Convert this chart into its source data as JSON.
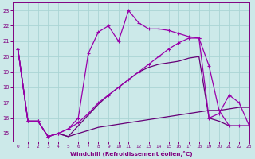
{
  "xlabel": "Windchill (Refroidissement éolien,°C)",
  "xlim": [
    -0.5,
    23
  ],
  "ylim": [
    14.5,
    23.5
  ],
  "xticks": [
    0,
    1,
    2,
    3,
    4,
    5,
    6,
    7,
    8,
    9,
    10,
    11,
    12,
    13,
    14,
    15,
    16,
    17,
    18,
    19,
    20,
    21,
    22,
    23
  ],
  "yticks": [
    15,
    16,
    17,
    18,
    19,
    20,
    21,
    22,
    23
  ],
  "bg_color": "#cce9e9",
  "line_color1": "#9900aa",
  "line_color2": "#660077",
  "grid_color": "#aad4d4",
  "line1_x": [
    0,
    1,
    2,
    3,
    4,
    5,
    6,
    7,
    8,
    9,
    10,
    11,
    12,
    13,
    14,
    15,
    16,
    17,
    18,
    19,
    20,
    21,
    22,
    23
  ],
  "line1_y": [
    20.5,
    15.8,
    15.8,
    14.8,
    15.0,
    14.8,
    15.5,
    16.2,
    16.9,
    17.5,
    18.0,
    18.5,
    19.0,
    19.3,
    19.5,
    19.6,
    19.7,
    19.9,
    20.0,
    16.0,
    15.8,
    15.5,
    15.5,
    15.5
  ],
  "line2_x": [
    0,
    1,
    2,
    3,
    4,
    5,
    6,
    7,
    8,
    9,
    10,
    11,
    12,
    13,
    14,
    15,
    16,
    17,
    18,
    19,
    20,
    21,
    22,
    23
  ],
  "line2_y": [
    20.5,
    15.8,
    15.8,
    14.8,
    15.0,
    15.3,
    16.0,
    20.2,
    21.6,
    22.0,
    21.0,
    23.0,
    22.2,
    21.8,
    21.8,
    21.7,
    21.5,
    21.3,
    21.2,
    19.4,
    16.5,
    15.5,
    15.5,
    15.5
  ],
  "line3_x": [
    0,
    1,
    2,
    3,
    4,
    5,
    6,
    7,
    8,
    9,
    10,
    11,
    12,
    13,
    14,
    15,
    16,
    17,
    18,
    19,
    20,
    21,
    22,
    23
  ],
  "line3_y": [
    20.5,
    15.8,
    15.8,
    14.8,
    15.0,
    15.3,
    15.7,
    16.3,
    17.0,
    17.5,
    18.0,
    18.5,
    19.0,
    19.5,
    20.0,
    20.5,
    20.9,
    21.2,
    21.2,
    16.0,
    16.3,
    17.5,
    17.0,
    15.5
  ],
  "line4_x": [
    0,
    1,
    2,
    3,
    4,
    5,
    6,
    7,
    8,
    9,
    10,
    11,
    12,
    13,
    14,
    15,
    16,
    17,
    18,
    19,
    20,
    21,
    22,
    23
  ],
  "line4_y": [
    20.5,
    15.8,
    15.8,
    14.8,
    15.0,
    14.8,
    15.0,
    15.2,
    15.4,
    15.5,
    15.6,
    15.7,
    15.8,
    15.9,
    16.0,
    16.1,
    16.2,
    16.3,
    16.4,
    16.5,
    16.5,
    16.6,
    16.7,
    16.7
  ]
}
